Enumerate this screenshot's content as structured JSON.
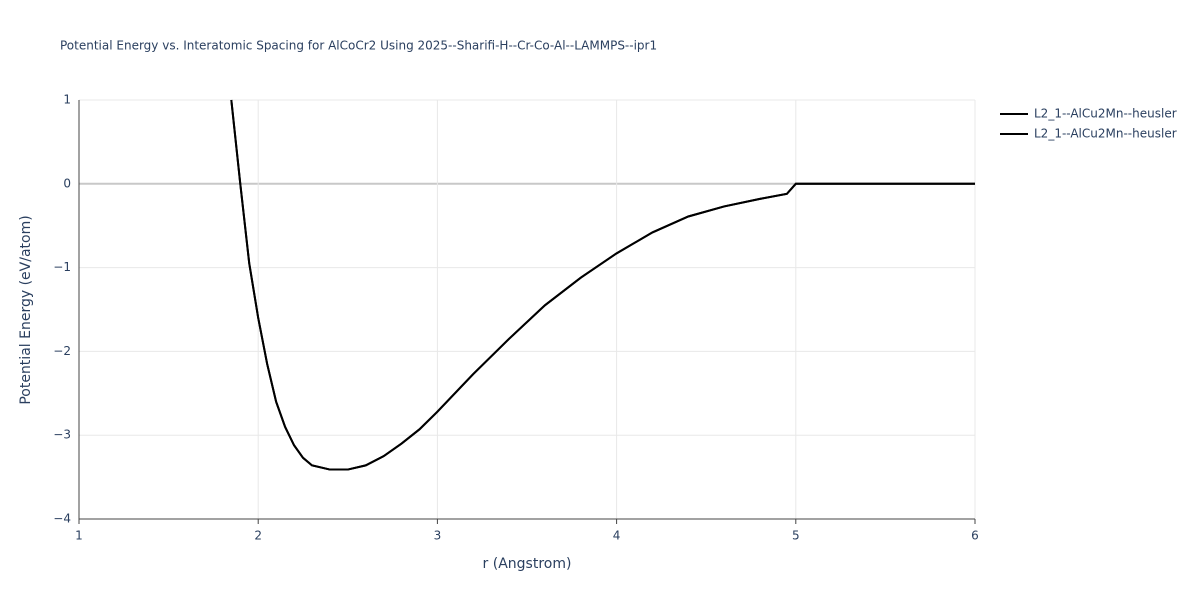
{
  "chart_data": {
    "type": "line",
    "title": "Potential Energy vs. Interatomic Spacing for AlCoCr2 Using 2025--Sharifi-H--Cr-Co-Al--LAMMPS--ipr1",
    "xlabel": "r (Angstrom)",
    "ylabel": "Potential Energy (eV/atom)",
    "x": [
      1.85,
      1.9,
      1.95,
      2.0,
      2.05,
      2.1,
      2.15,
      2.2,
      2.25,
      2.3,
      2.4,
      2.5,
      2.6,
      2.7,
      2.8,
      2.9,
      3.0,
      3.2,
      3.4,
      3.6,
      3.8,
      4.0,
      4.2,
      4.4,
      4.6,
      4.8,
      4.95,
      5.0,
      6.0
    ],
    "series": [
      {
        "name": "L2_1--AlCu2Mn--heusler",
        "color": "#000000",
        "values": [
          1.0,
          0.0,
          -0.95,
          -1.6,
          -2.15,
          -2.6,
          -2.9,
          -3.12,
          -3.27,
          -3.36,
          -3.41,
          -3.41,
          -3.36,
          -3.25,
          -3.1,
          -2.93,
          -2.72,
          -2.27,
          -1.85,
          -1.45,
          -1.12,
          -0.83,
          -0.58,
          -0.39,
          -0.27,
          -0.18,
          -0.12,
          0,
          0
        ]
      },
      {
        "name": "L2_1--AlCu2Mn--heusler",
        "color": "#000000",
        "values": [
          1.0,
          0.0,
          -0.95,
          -1.6,
          -2.15,
          -2.6,
          -2.9,
          -3.12,
          -3.27,
          -3.36,
          -3.41,
          -3.41,
          -3.36,
          -3.25,
          -3.1,
          -2.93,
          -2.72,
          -2.27,
          -1.85,
          -1.45,
          -1.12,
          -0.83,
          -0.58,
          -0.39,
          -0.27,
          -0.18,
          -0.12,
          0,
          0
        ]
      }
    ],
    "xlim": [
      1,
      6
    ],
    "xticks": [
      1,
      2,
      3,
      4,
      5,
      6
    ],
    "ylim": [
      -4,
      1
    ],
    "yticks": [
      {
        "value": -4,
        "label": "−4"
      },
      {
        "value": -3,
        "label": "−3"
      },
      {
        "value": -2,
        "label": "−2"
      },
      {
        "value": -1,
        "label": "−1"
      },
      0,
      1
    ],
    "grid": true
  }
}
